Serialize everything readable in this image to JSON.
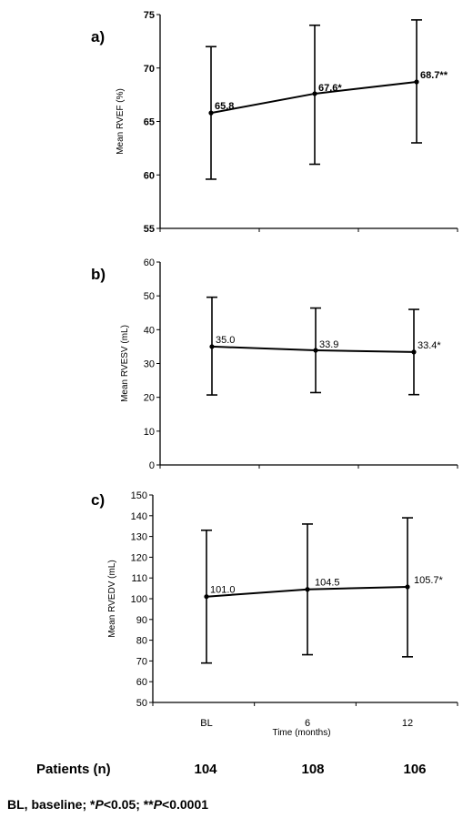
{
  "chart_data": [
    {
      "type": "line",
      "panel_label": "a)",
      "ylabel": "Mean RVEF (%)",
      "ylim": [
        55,
        75
      ],
      "yticks": [
        55,
        60,
        65,
        70,
        75
      ],
      "x": [
        "BL",
        "6",
        "12"
      ],
      "values": [
        65.8,
        67.6,
        68.7
      ],
      "error_low": [
        59.6,
        61.0,
        63.0
      ],
      "error_high": [
        72.0,
        74.0,
        74.5
      ],
      "point_labels": [
        "65.8",
        "67.6*",
        "68.7**"
      ],
      "tick_labels_bold": true,
      "data_labels_bold": true
    },
    {
      "type": "line",
      "panel_label": "b)",
      "ylabel": "Mean RVESV (mL)",
      "ylim": [
        0,
        60
      ],
      "yticks": [
        0,
        10,
        20,
        30,
        40,
        50,
        60
      ],
      "x": [
        "BL",
        "6",
        "12"
      ],
      "values": [
        35.0,
        33.9,
        33.4
      ],
      "error_low": [
        20.7,
        21.4,
        20.8
      ],
      "error_high": [
        49.6,
        46.4,
        46.0
      ],
      "point_labels": [
        "35.0",
        "33.9",
        "33.4*"
      ],
      "tick_labels_bold": false,
      "data_labels_bold": false
    },
    {
      "type": "line",
      "panel_label": "c)",
      "ylabel": "Mean RVEDV (mL)",
      "ylim": [
        50,
        150
      ],
      "yticks": [
        50,
        60,
        70,
        80,
        90,
        100,
        110,
        120,
        130,
        140,
        150
      ],
      "x": [
        "BL",
        "6",
        "12"
      ],
      "values": [
        101.0,
        104.5,
        105.7
      ],
      "error_low": [
        69.0,
        73.0,
        72.0
      ],
      "error_high": [
        133.0,
        136.0,
        139.0
      ],
      "point_labels": [
        "101.0",
        "104.5",
        "105.7*"
      ],
      "tick_labels_bold": false,
      "data_labels_bold": false,
      "xlabel": "Time (months)",
      "xtick_labels": [
        "BL",
        "6",
        "12"
      ]
    }
  ],
  "patients": {
    "label": "Patients (n)",
    "values": [
      "104",
      "108",
      "106"
    ]
  },
  "footnote": {
    "prefix": "BL, baseline; *",
    "p1_italic": "P",
    "p1_rest": "<0.05; **",
    "p2_italic": "P",
    "p2_rest": "<0.0001"
  }
}
